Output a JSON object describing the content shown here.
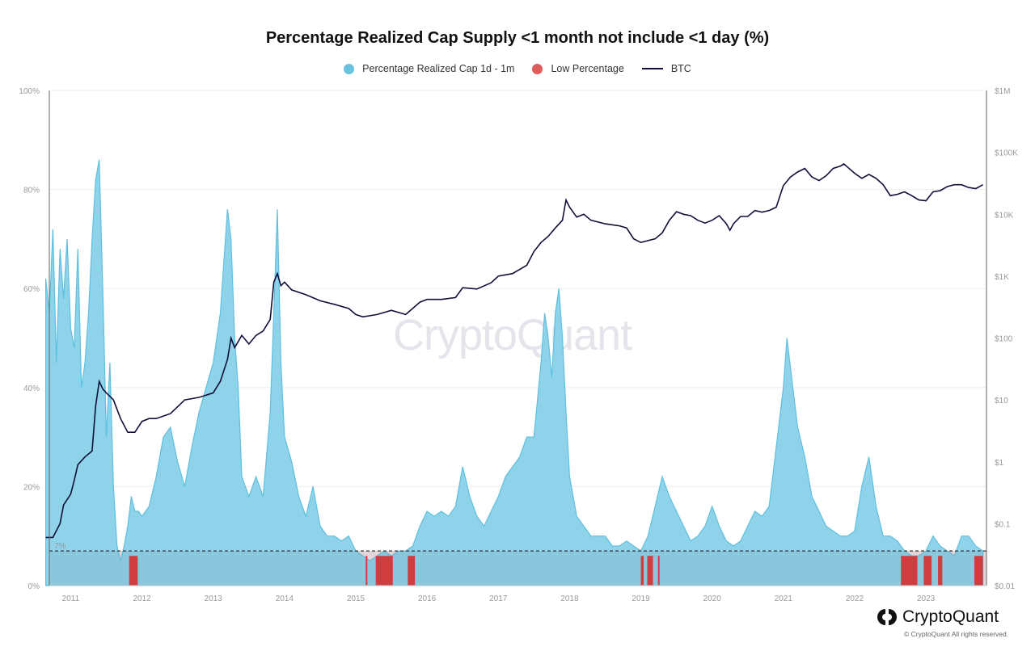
{
  "header": {
    "title": "Percentage Realized Cap Supply <1 month not include <1 day (%)"
  },
  "legend": [
    {
      "label": "Percentage Realized Cap 1d - 1m",
      "color": "#69c3df",
      "kind": "dot"
    },
    {
      "label": "Low Percentage",
      "color": "#e05a5a",
      "kind": "dot"
    },
    {
      "label": "BTC",
      "color": "#120e3a",
      "kind": "line"
    }
  ],
  "watermark": "CryptoQuant",
  "brand": {
    "name": "CryptoQuant",
    "copyright": "© CryptoQuant All rights reserved.",
    "icon": "cryptoquant-logo-icon"
  },
  "chart_data": {
    "type": "area",
    "title": "Percentage Realized Cap Supply <1 month not include <1 day (%)",
    "x_range": [
      2010.7,
      2023.85
    ],
    "x_ticks": [
      "2011",
      "2012",
      "2013",
      "2014",
      "2015",
      "2016",
      "2017",
      "2018",
      "2019",
      "2020",
      "2021",
      "2022",
      "2023"
    ],
    "left_axis": {
      "ticks": [
        "0%",
        "20%",
        "40%",
        "60%",
        "80%",
        "100%"
      ],
      "ylim": [
        0,
        100
      ],
      "unit": "%"
    },
    "right_axis": {
      "ticks": [
        "$0.01",
        "$0.1",
        "$1",
        "$10",
        "$100",
        "$1K",
        "$10K",
        "$100K",
        "$1M"
      ],
      "scale": "log",
      "ylim": [
        0.01,
        1000000
      ]
    },
    "threshold": {
      "value": 7,
      "label": "7%"
    },
    "series": [
      {
        "name": "Percentage Realized Cap 1d - 1m",
        "axis": "left",
        "color": "#69c3df",
        "x": [
          2010.65,
          2010.7,
          2010.75,
          2010.8,
          2010.85,
          2010.9,
          2010.95,
          2011.0,
          2011.05,
          2011.1,
          2011.15,
          2011.2,
          2011.25,
          2011.3,
          2011.35,
          2011.4,
          2011.45,
          2011.5,
          2011.55,
          2011.6,
          2011.65,
          2011.7,
          2011.75,
          2011.8,
          2011.85,
          2011.9,
          2011.95,
          2012.0,
          2012.1,
          2012.2,
          2012.3,
          2012.4,
          2012.5,
          2012.6,
          2012.7,
          2012.8,
          2012.9,
          2013.0,
          2013.1,
          2013.2,
          2013.25,
          2013.3,
          2013.35,
          2013.4,
          2013.5,
          2013.6,
          2013.7,
          2013.8,
          2013.85,
          2013.9,
          2013.95,
          2014.0,
          2014.1,
          2014.2,
          2014.3,
          2014.4,
          2014.5,
          2014.6,
          2014.7,
          2014.8,
          2014.9,
          2015.0,
          2015.1,
          2015.2,
          2015.3,
          2015.4,
          2015.5,
          2015.6,
          2015.7,
          2015.8,
          2015.9,
          2016.0,
          2016.1,
          2016.2,
          2016.3,
          2016.4,
          2016.5,
          2016.6,
          2016.7,
          2016.8,
          2016.9,
          2017.0,
          2017.1,
          2017.2,
          2017.3,
          2017.4,
          2017.5,
          2017.6,
          2017.65,
          2017.7,
          2017.75,
          2017.8,
          2017.85,
          2017.9,
          2017.95,
          2018.0,
          2018.1,
          2018.2,
          2018.3,
          2018.4,
          2018.5,
          2018.6,
          2018.7,
          2018.8,
          2018.9,
          2019.0,
          2019.1,
          2019.2,
          2019.3,
          2019.4,
          2019.5,
          2019.6,
          2019.7,
          2019.8,
          2019.9,
          2020.0,
          2020.1,
          2020.2,
          2020.3,
          2020.4,
          2020.5,
          2020.6,
          2020.7,
          2020.8,
          2020.9,
          2021.0,
          2021.05,
          2021.1,
          2021.15,
          2021.2,
          2021.3,
          2021.4,
          2021.5,
          2021.6,
          2021.7,
          2021.8,
          2021.9,
          2022.0,
          2022.1,
          2022.2,
          2022.3,
          2022.4,
          2022.5,
          2022.6,
          2022.7,
          2022.8,
          2022.9,
          2023.0,
          2023.1,
          2023.2,
          2023.3,
          2023.4,
          2023.5,
          2023.6,
          2023.7,
          2023.8
        ],
        "values": [
          62,
          55,
          72,
          45,
          68,
          58,
          70,
          52,
          48,
          68,
          40,
          45,
          55,
          70,
          82,
          86,
          60,
          30,
          45,
          20,
          8,
          5,
          8,
          12,
          18,
          15,
          15,
          14,
          16,
          22,
          30,
          32,
          25,
          20,
          28,
          35,
          40,
          45,
          55,
          76,
          70,
          50,
          40,
          22,
          18,
          22,
          18,
          35,
          55,
          76,
          45,
          30,
          25,
          18,
          14,
          20,
          12,
          10,
          10,
          9,
          10,
          7,
          6,
          5,
          6,
          7,
          6,
          7,
          7,
          8,
          12,
          15,
          14,
          15,
          14,
          16,
          24,
          18,
          14,
          12,
          15,
          18,
          22,
          24,
          26,
          30,
          30,
          45,
          55,
          50,
          42,
          55,
          60,
          50,
          35,
          22,
          14,
          12,
          10,
          10,
          10,
          8,
          8,
          9,
          8,
          7,
          10,
          16,
          22,
          18,
          15,
          12,
          9,
          10,
          12,
          16,
          12,
          9,
          8,
          9,
          12,
          15,
          14,
          16,
          28,
          40,
          50,
          44,
          38,
          32,
          26,
          18,
          15,
          12,
          11,
          10,
          10,
          11,
          20,
          26,
          16,
          10,
          10,
          9,
          7,
          6,
          6,
          7,
          10,
          8,
          7,
          6,
          10,
          10,
          8,
          7
        ]
      },
      {
        "name": "Low Percentage",
        "axis": "left",
        "color": "#e22b2b",
        "segments": [
          [
            2011.82,
            2011.94
          ],
          [
            2015.14,
            2015.16
          ],
          [
            2015.28,
            2015.52
          ],
          [
            2015.73,
            2015.83
          ],
          [
            2019.0,
            2019.04
          ],
          [
            2019.09,
            2019.17
          ],
          [
            2019.24,
            2019.25
          ],
          [
            2022.65,
            2022.88
          ],
          [
            2022.97,
            2023.08
          ],
          [
            2023.17,
            2023.23
          ],
          [
            2023.68,
            2023.8
          ]
        ]
      },
      {
        "name": "BTC",
        "axis": "right",
        "color": "#120e3a",
        "x": [
          2010.65,
          2010.75,
          2010.85,
          2010.9,
          2011.0,
          2011.05,
          2011.1,
          2011.2,
          2011.3,
          2011.35,
          2011.4,
          2011.45,
          2011.5,
          2011.6,
          2011.7,
          2011.8,
          2011.9,
          2012.0,
          2012.1,
          2012.2,
          2012.4,
          2012.6,
          2012.8,
          2013.0,
          2013.1,
          2013.2,
          2013.25,
          2013.3,
          2013.4,
          2013.5,
          2013.6,
          2013.7,
          2013.8,
          2013.85,
          2013.9,
          2013.95,
          2014.0,
          2014.1,
          2014.3,
          2014.5,
          2014.7,
          2014.9,
          2015.0,
          2015.1,
          2015.3,
          2015.5,
          2015.7,
          2015.9,
          2016.0,
          2016.2,
          2016.4,
          2016.5,
          2016.7,
          2016.9,
          2017.0,
          2017.2,
          2017.4,
          2017.5,
          2017.6,
          2017.7,
          2017.8,
          2017.9,
          2017.95,
          2018.0,
          2018.1,
          2018.2,
          2018.3,
          2018.5,
          2018.7,
          2018.8,
          2018.9,
          2019.0,
          2019.2,
          2019.3,
          2019.4,
          2019.5,
          2019.6,
          2019.7,
          2019.8,
          2019.9,
          2020.0,
          2020.1,
          2020.2,
          2020.25,
          2020.3,
          2020.4,
          2020.5,
          2020.6,
          2020.7,
          2020.8,
          2020.9,
          2021.0,
          2021.1,
          2021.2,
          2021.3,
          2021.4,
          2021.5,
          2021.6,
          2021.7,
          2021.8,
          2021.85,
          2021.9,
          2022.0,
          2022.1,
          2022.2,
          2022.3,
          2022.4,
          2022.5,
          2022.6,
          2022.7,
          2022.8,
          2022.9,
          2023.0,
          2023.1,
          2023.2,
          2023.3,
          2023.4,
          2023.5,
          2023.6,
          2023.7,
          2023.8
        ],
        "values": [
          0.06,
          0.06,
          0.1,
          0.2,
          0.3,
          0.5,
          0.9,
          1.2,
          1.5,
          8,
          20,
          15,
          13,
          10,
          5,
          3,
          3,
          4.5,
          5,
          5,
          6,
          10,
          11,
          13,
          20,
          45,
          100,
          70,
          110,
          80,
          110,
          130,
          200,
          800,
          1100,
          700,
          800,
          600,
          500,
          400,
          350,
          300,
          240,
          220,
          240,
          280,
          240,
          380,
          420,
          420,
          450,
          650,
          620,
          780,
          1000,
          1100,
          1500,
          2500,
          3500,
          4400,
          6000,
          8000,
          17000,
          13000,
          9000,
          10000,
          8000,
          7000,
          6500,
          6000,
          4000,
          3500,
          4000,
          5000,
          8000,
          11000,
          10000,
          9500,
          8000,
          7200,
          8000,
          9500,
          7000,
          5500,
          7000,
          9200,
          9200,
          11500,
          10800,
          11500,
          13000,
          29000,
          40000,
          48000,
          55000,
          40000,
          35000,
          42000,
          55000,
          60000,
          65000,
          58000,
          46000,
          38000,
          44000,
          38000,
          30000,
          20000,
          21000,
          23000,
          20000,
          17000,
          16500,
          23000,
          24000,
          28000,
          30000,
          30000,
          27000,
          26000,
          30000
        ]
      }
    ]
  }
}
